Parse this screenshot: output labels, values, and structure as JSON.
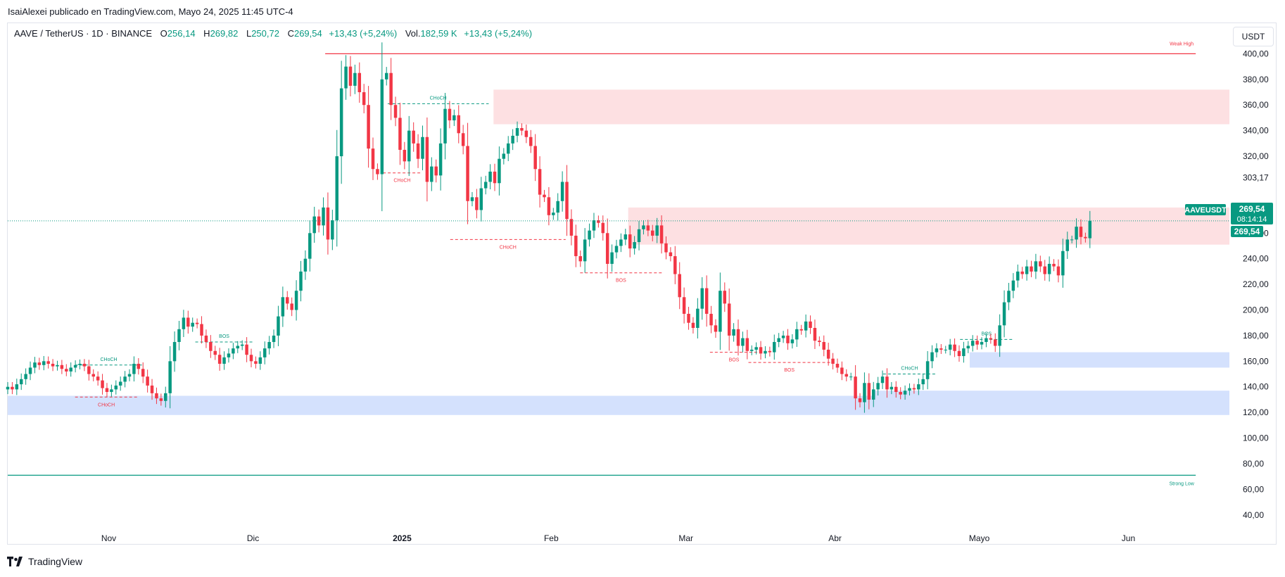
{
  "header": {
    "published_line": "IsaiAlexei publicado en TradingView.com, Mayo 24, 2025 11:45 UTC-4"
  },
  "legend": {
    "symbol": "AAVE / TetherUS · 1D · BINANCE",
    "open_label": "O",
    "open_value": "256,14",
    "high_label": "H",
    "high_value": "269,82",
    "low_label": "L",
    "low_value": "250,72",
    "close_label": "C",
    "close_value": "269,54",
    "change": "+13,43 (+5,24%)",
    "vol_label": "Vol.",
    "vol_value": "182,59 K",
    "vol_change": "+13,43 (+5,24%)"
  },
  "currency_button": "USDT",
  "footer": {
    "brand": "TradingView"
  },
  "colors": {
    "up": "#089981",
    "down": "#f23645",
    "supply": "#fde0e2",
    "demand": "#d4e1fd",
    "axis_text": "#131722"
  },
  "chart_data": {
    "type": "candlestick",
    "symbol": "AAVEUSDT",
    "timeframe": "1D",
    "ylim": [
      30,
      420
    ],
    "y_ticks": [
      "400,00",
      "380,00",
      "360,00",
      "340,00",
      "320,00",
      "303,17",
      "260,00",
      "240,00",
      "220,00",
      "200,00",
      "180,00",
      "160,00",
      "140,00",
      "120,00",
      "100,00",
      "80,00",
      "60,00",
      "40,00"
    ],
    "y_tick_values": [
      400,
      380,
      360,
      340,
      320,
      303.17,
      260,
      240,
      220,
      200,
      180,
      160,
      140,
      120,
      100,
      80,
      60,
      40
    ],
    "x_labels": [
      "Nov",
      "Dic",
      "2025",
      "Feb",
      "Mar",
      "Abr",
      "Mayo",
      "Jun"
    ],
    "x_label_dates": [
      "2024-11-01",
      "2024-12-01",
      "2025-01-01",
      "2025-02-01",
      "2025-03-01",
      "2025-04-01",
      "2025-05-01",
      "2025-06-01"
    ],
    "x_range": [
      "2024-10-11",
      "2025-06-22"
    ],
    "last_price": {
      "value": 269.54,
      "symbol_tag": "AAVEUSDT",
      "price_label": "269,54",
      "countdown": "08:14:14",
      "second_label": "269,54"
    },
    "zones": [
      {
        "kind": "supply",
        "start": "2025-01-20",
        "end": "2025-06-22",
        "top": 372,
        "bottom": 345
      },
      {
        "kind": "supply",
        "start": "2025-02-17",
        "end": "2025-06-22",
        "top": 280,
        "bottom": 251
      },
      {
        "kind": "demand",
        "start": "2025-04-29",
        "end": "2025-06-22",
        "top": 167,
        "bottom": 155
      },
      {
        "kind": "demand",
        "start": "2025-04-09",
        "end": "2025-06-22",
        "top": 137,
        "bottom": 130
      },
      {
        "kind": "demand",
        "start": "2024-10-11",
        "end": "2025-06-22",
        "top": 133,
        "bottom": 118
      }
    ],
    "levels": [
      {
        "label": "Weak High",
        "value": 400,
        "start": "2024-12-16",
        "end": "2025-06-15",
        "color": "#f23645"
      },
      {
        "label": "Strong Low",
        "value": 71,
        "start": "2024-10-11",
        "end": "2025-06-15",
        "color": "#089981"
      }
    ],
    "structure": [
      {
        "label": "CHoCH",
        "value": 157,
        "start": "2024-10-25",
        "end": "2024-11-08",
        "color": "#089981"
      },
      {
        "label": "CHoCH",
        "value": 132,
        "start": "2024-10-25",
        "end": "2024-11-07",
        "color": "#f23645"
      },
      {
        "label": "BOS",
        "value": 175,
        "start": "2024-11-19",
        "end": "2024-12-01",
        "color": "#089981"
      },
      {
        "label": "CHoCH",
        "value": 361,
        "start": "2024-12-29",
        "end": "2025-01-19",
        "color": "#089981"
      },
      {
        "label": "CHoCH",
        "value": 307,
        "start": "2024-12-28",
        "end": "2025-01-05",
        "color": "#f23645"
      },
      {
        "label": "CHoCH",
        "value": 255,
        "start": "2025-01-11",
        "end": "2025-02-04",
        "color": "#f23645"
      },
      {
        "label": "BOS",
        "value": 229,
        "start": "2025-02-07",
        "end": "2025-02-24",
        "color": "#f23645"
      },
      {
        "label": "BOS",
        "value": 167,
        "start": "2025-03-06",
        "end": "2025-03-16",
        "color": "#f23645"
      },
      {
        "label": "BOS",
        "value": 159,
        "start": "2025-03-14",
        "end": "2025-03-31",
        "color": "#f23645"
      },
      {
        "label": "CHoCH",
        "value": 150,
        "start": "2025-04-11",
        "end": "2025-04-22",
        "color": "#089981"
      },
      {
        "label": "BOS",
        "value": 177,
        "start": "2025-04-27",
        "end": "2025-05-08",
        "color": "#089981"
      }
    ],
    "closes": [
      140,
      138,
      142,
      146,
      150,
      155,
      159,
      157,
      160,
      158,
      156,
      157,
      154,
      152,
      155,
      157,
      158,
      156,
      150,
      148,
      145,
      139,
      136,
      138,
      141,
      144,
      148,
      150,
      158,
      154,
      148,
      141,
      135,
      131,
      129,
      135,
      160,
      175,
      185,
      194,
      187,
      190,
      189,
      180,
      175,
      168,
      165,
      158,
      163,
      166,
      170,
      172,
      173,
      165,
      160,
      158,
      163,
      170,
      175,
      180,
      195,
      210,
      205,
      200,
      215,
      230,
      240,
      260,
      273,
      266,
      280,
      255,
      270,
      320,
      373,
      390,
      375,
      385,
      370,
      360,
      326,
      310,
      306,
      380,
      385,
      360,
      350,
      325,
      316,
      340,
      330,
      318,
      335,
      300,
      312,
      305,
      330,
      357,
      348,
      352,
      338,
      328,
      285,
      288,
      278,
      295,
      300,
      308,
      299,
      318,
      322,
      330,
      336,
      342,
      340,
      335,
      328,
      310,
      290,
      288,
      274,
      276,
      285,
      300,
      271,
      258,
      242,
      238,
      255,
      262,
      270,
      268,
      260,
      236,
      245,
      250,
      255,
      259,
      248,
      253,
      263,
      266,
      262,
      258,
      266,
      252,
      245,
      242,
      228,
      210,
      197,
      190,
      186,
      201,
      217,
      197,
      188,
      183,
      215,
      205,
      180,
      185,
      172,
      178,
      168,
      169,
      171,
      166,
      168,
      167,
      175,
      178,
      180,
      174,
      177,
      185,
      184,
      191,
      186,
      176,
      175,
      169,
      162,
      158,
      155,
      150,
      148,
      148,
      131,
      128,
      143,
      130,
      138,
      143,
      148,
      138,
      140,
      136,
      134,
      137,
      139,
      138,
      142,
      146,
      160,
      167,
      170,
      169,
      169,
      173,
      168,
      164,
      170,
      172,
      176,
      173,
      175,
      178,
      177,
      172,
      188,
      206,
      215,
      223,
      230,
      228,
      234,
      230,
      238,
      234,
      228,
      236,
      234,
      227,
      246,
      255,
      255,
      265,
      257,
      256,
      269.54
    ]
  }
}
